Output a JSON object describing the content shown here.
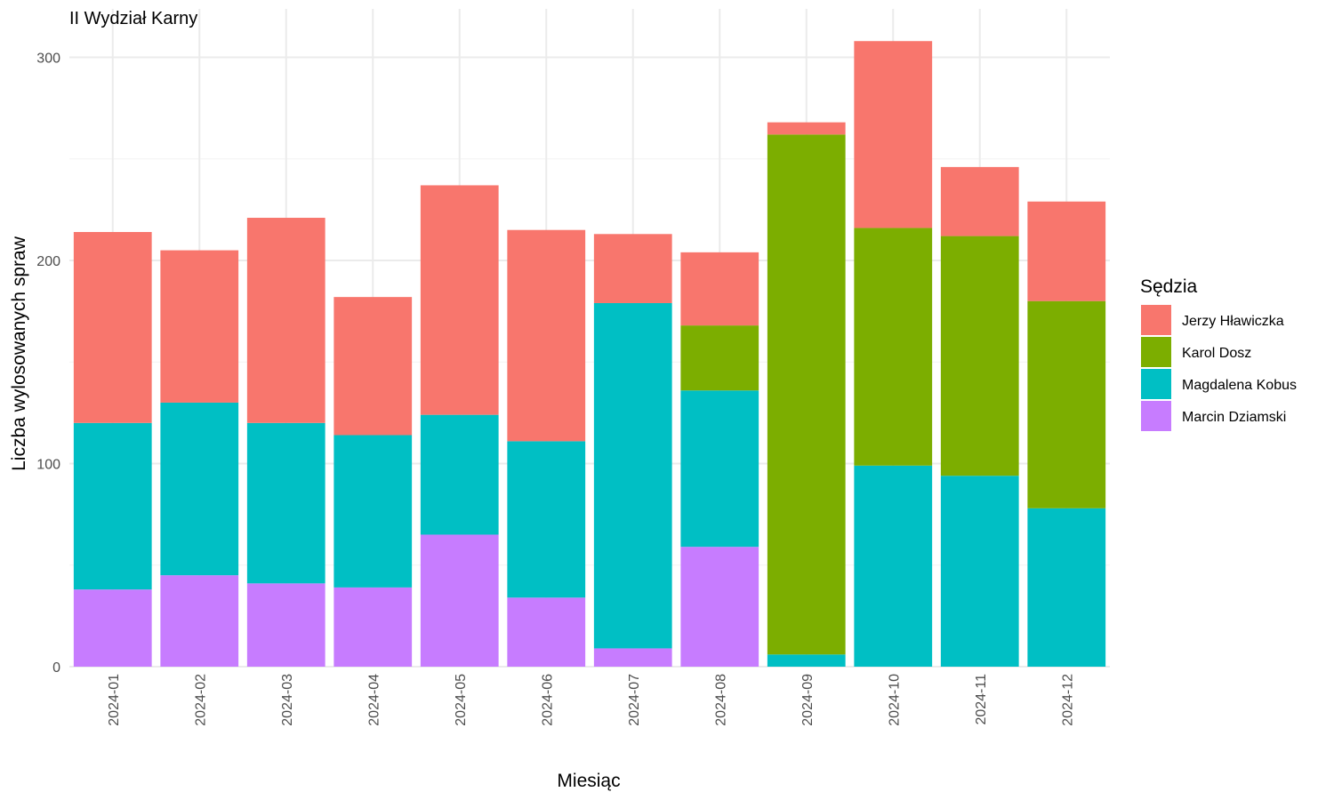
{
  "chart_data": {
    "type": "bar",
    "stacked": true,
    "title": "II Wydział Karny",
    "xlabel": "Miesiąc",
    "ylabel": "Liczba wylosowanych spraw",
    "ylim": [
      0,
      310
    ],
    "yticks": [
      0,
      100,
      200,
      300
    ],
    "grid": true,
    "legend": {
      "title": "Sędzia",
      "position": "right"
    },
    "categories": [
      "2024-01",
      "2024-02",
      "2024-03",
      "2024-04",
      "2024-05",
      "2024-06",
      "2024-07",
      "2024-08",
      "2024-09",
      "2024-10",
      "2024-11",
      "2024-12"
    ],
    "series": [
      {
        "name": "Jerzy Hławiczka",
        "color": "#F8766D",
        "values": [
          94,
          75,
          101,
          68,
          113,
          104,
          34,
          36,
          6,
          92,
          34,
          49
        ]
      },
      {
        "name": "Karol Dosz",
        "color": "#7CAE00",
        "values": [
          0,
          0,
          0,
          0,
          0,
          0,
          0,
          32,
          256,
          117,
          118,
          102
        ]
      },
      {
        "name": "Magdalena Kobus",
        "color": "#00BFC4",
        "values": [
          82,
          85,
          79,
          75,
          59,
          77,
          170,
          77,
          6,
          99,
          94,
          78
        ]
      },
      {
        "name": "Marcin Dziamski",
        "color": "#C77CFF",
        "values": [
          38,
          45,
          41,
          39,
          65,
          34,
          9,
          59,
          0,
          0,
          0,
          0
        ]
      }
    ],
    "stack_order_bottom_to_top": [
      "Marcin Dziamski",
      "Magdalena Kobus",
      "Karol Dosz",
      "Jerzy Hławiczka"
    ]
  }
}
